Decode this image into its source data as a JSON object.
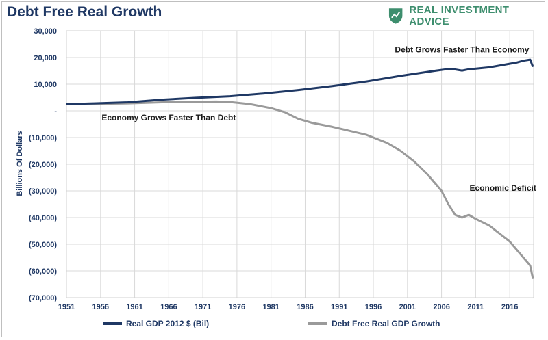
{
  "header": {
    "title": "Debt Free Real Growth",
    "brand": "REAL INVESTMENT ADVICE"
  },
  "colors": {
    "gdp": "#1f3864",
    "gdp_fill": "#2e6bb0",
    "debt_free": "#9a9a9a",
    "debt_free_fill": "#a6a6a6",
    "grid": "#d9d9d9",
    "brand": "#3e8e6e",
    "title": "#1f3864"
  },
  "chart_data": {
    "type": "area",
    "title": "Debt Free Real Growth",
    "xlabel": "",
    "ylabel": "Billions Of Dollars",
    "xlim": [
      1951,
      2019.5
    ],
    "ylim": [
      -70000,
      30000
    ],
    "grid": true,
    "legend_position": "bottom",
    "x_tick_labels": [
      "1951",
      "1956",
      "1961",
      "1966",
      "1971",
      "1976",
      "1981",
      "1986",
      "1991",
      "1996",
      "2001",
      "2006",
      "2011",
      "2016"
    ],
    "y_tick_labels": [
      "30,000",
      "20,000",
      "10,000",
      "-",
      "(10,000)",
      "(20,000)",
      "(30,000)",
      "(40,000)",
      "(50,000)",
      "(60,000)",
      "(70,000)"
    ],
    "y_tick_values": [
      30000,
      20000,
      10000,
      0,
      -10000,
      -20000,
      -30000,
      -40000,
      -50000,
      -60000,
      -70000
    ],
    "annotations": [
      {
        "text": "Debt Grows Faster Than Economy",
        "x": 2009,
        "y": 23000
      },
      {
        "text": "Economy Grows Faster Than Debt",
        "x": 1966,
        "y": -2500
      },
      {
        "text": "Economic Deficit",
        "x": 2015,
        "y": -29000
      }
    ],
    "series": [
      {
        "name": "Real GDP 2012 $ (Bil)",
        "x": [
          1951,
          1955,
          1960,
          1965,
          1970,
          1975,
          1980,
          1985,
          1990,
          1995,
          2000,
          2005,
          2007,
          2008,
          2009,
          2010,
          2013,
          2015,
          2017,
          2018,
          2019,
          2019.4
        ],
        "values": [
          2500,
          2800,
          3200,
          4200,
          4900,
          5500,
          6500,
          7800,
          9300,
          11000,
          13100,
          15000,
          15700,
          15500,
          15100,
          15600,
          16300,
          17200,
          18100,
          18800,
          19200,
          16500
        ]
      },
      {
        "name": "Debt Free Real GDP Growth",
        "x": [
          1951,
          1955,
          1960,
          1965,
          1970,
          1973,
          1975,
          1978,
          1981,
          1983,
          1985,
          1987,
          1990,
          1995,
          1998,
          2000,
          2002,
          2004,
          2006,
          2007,
          2008,
          2009,
          2010,
          2011,
          2013,
          2015,
          2016,
          2017,
          2018,
          2019,
          2019.4
        ],
        "values": [
          2500,
          2600,
          2800,
          3200,
          3400,
          3500,
          3300,
          2500,
          1000,
          -500,
          -3000,
          -4500,
          -6000,
          -9000,
          -12000,
          -15000,
          -19000,
          -24000,
          -30000,
          -35000,
          -39000,
          -40000,
          -39000,
          -40500,
          -43000,
          -47000,
          -49000,
          -52000,
          -55000,
          -58000,
          -63000
        ]
      }
    ]
  }
}
